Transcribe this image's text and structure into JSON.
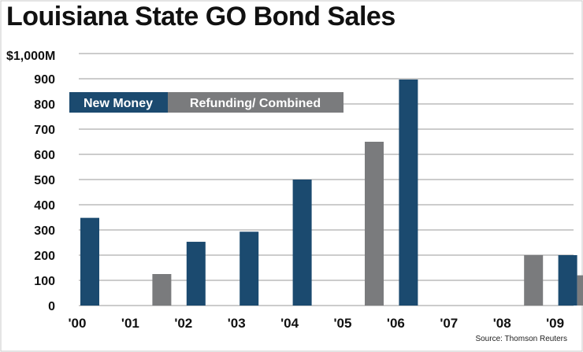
{
  "chart_data": {
    "type": "bar",
    "title": "Louisiana State GO Bond Sales",
    "ylabel": "$1,000M",
    "ylim": [
      0,
      1000
    ],
    "yticks": [
      "0",
      "100",
      "200",
      "300",
      "400",
      "500",
      "600",
      "700",
      "800",
      "900"
    ],
    "categories": [
      "'00",
      "'01",
      "'02",
      "'03",
      "'04",
      "'05",
      "'06",
      "'07",
      "'08",
      "'09"
    ],
    "series": [
      {
        "name": "New Money",
        "color": "#1b4a6f",
        "values": [
          348,
          0,
          253,
          293,
          500,
          0,
          897,
          0,
          0,
          200
        ]
      },
      {
        "name": "Refunding/ Combined",
        "color": "#7a7b7d",
        "values": [
          0,
          125,
          0,
          0,
          0,
          650,
          0,
          0,
          200,
          120
        ]
      }
    ],
    "grid": true,
    "legend": "top-left",
    "source": "Source: Thomson Reuters"
  }
}
